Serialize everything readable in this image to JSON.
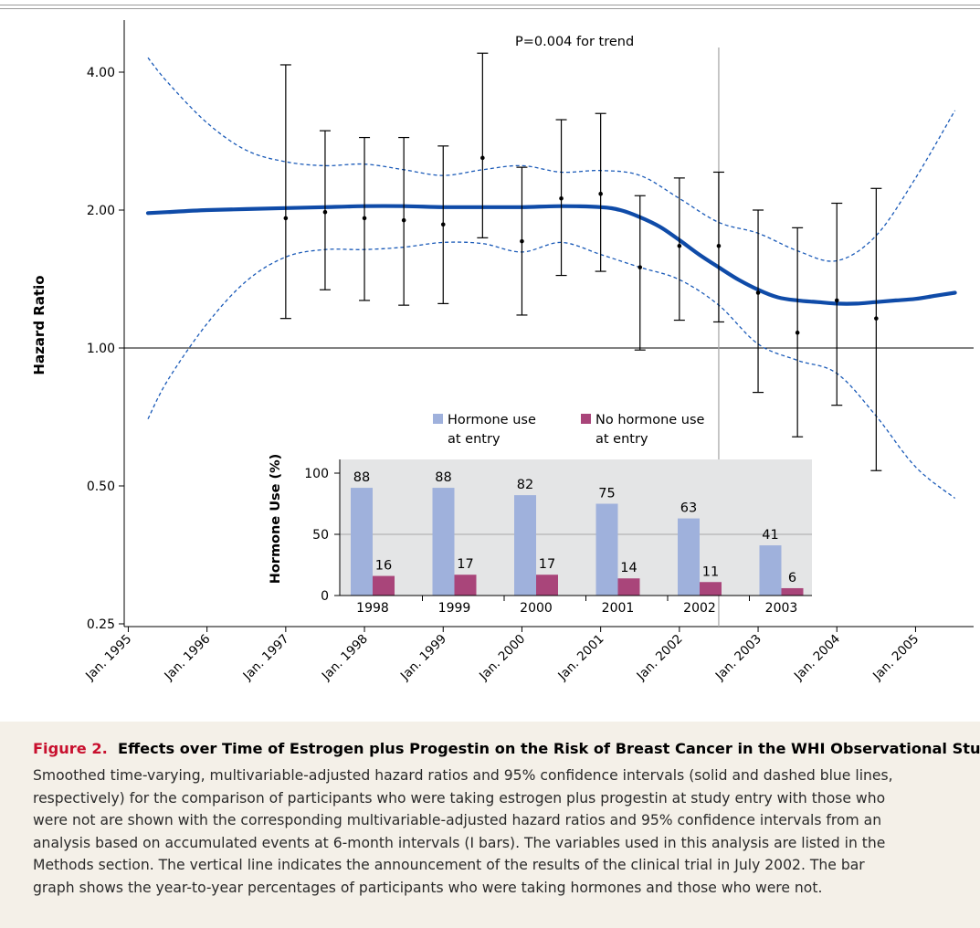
{
  "chart_data": [
    {
      "type": "line",
      "annotation": "P=0.004 for trend",
      "ylabel": "Hazard Ratio",
      "y_scale": "log",
      "y_ticks": [
        4.0,
        2.0,
        1.0,
        0.5,
        0.25
      ],
      "y_tick_labels": [
        "4.00",
        "2.00",
        "1.00",
        "0.50",
        "0.25"
      ],
      "reference_line_y": 1.0,
      "x_tick_labels": [
        "Jan. 1995",
        "Jan. 1996",
        "Jan. 1997",
        "Jan. 1998",
        "Jan. 1999",
        "Jan. 2000",
        "Jan. 2001",
        "Jan. 2002",
        "Jan. 2003",
        "Jan. 2004",
        "Jan. 2005"
      ],
      "x_range": [
        1995.0,
        2005.5
      ],
      "vertical_line_x": 2002.5,
      "colors": {
        "smoothed": "#0f4ba8",
        "ci": "#1a5ab8",
        "bars": "#000000"
      },
      "smoothed_hazard_ratio": {
        "x": [
          1995.25,
          1995.5,
          1996.0,
          1996.5,
          1997.0,
          1997.5,
          1998.0,
          1998.5,
          1999.0,
          1999.5,
          2000.0,
          2000.5,
          2001.0,
          2001.25,
          2001.5,
          2001.75,
          2002.0,
          2002.25,
          2002.5,
          2002.75,
          2003.0,
          2003.25,
          2003.5,
          2003.75,
          2004.0,
          2004.25,
          2004.5,
          2004.75,
          2005.0,
          2005.25,
          2005.5
        ],
        "y": [
          1.97,
          1.98,
          2.0,
          2.01,
          2.02,
          2.03,
          2.04,
          2.04,
          2.03,
          2.03,
          2.03,
          2.04,
          2.03,
          2.0,
          1.93,
          1.84,
          1.72,
          1.6,
          1.5,
          1.41,
          1.34,
          1.29,
          1.27,
          1.26,
          1.25,
          1.25,
          1.26,
          1.27,
          1.28,
          1.3,
          1.32
        ]
      },
      "ci_upper": {
        "x": [
          1995.25,
          1995.5,
          1996.0,
          1996.5,
          1997.0,
          1997.5,
          1998.0,
          1998.5,
          1999.0,
          1999.5,
          2000.0,
          2000.5,
          2001.0,
          2001.5,
          2002.0,
          2002.5,
          2003.0,
          2003.5,
          2004.0,
          2004.5,
          2005.0,
          2005.5
        ],
        "y": [
          4.3,
          3.8,
          3.1,
          2.7,
          2.55,
          2.5,
          2.52,
          2.45,
          2.38,
          2.45,
          2.5,
          2.42,
          2.44,
          2.38,
          2.12,
          1.88,
          1.78,
          1.63,
          1.55,
          1.76,
          2.35,
          3.3
        ]
      },
      "ci_lower": {
        "x": [
          1995.25,
          1995.5,
          1996.0,
          1996.5,
          1997.0,
          1997.5,
          1998.0,
          1998.5,
          1999.0,
          1999.5,
          2000.0,
          2000.5,
          2001.0,
          2001.5,
          2002.0,
          2002.5,
          2003.0,
          2003.5,
          2004.0,
          2004.5,
          2005.0,
          2005.5
        ],
        "y": [
          0.7,
          0.85,
          1.13,
          1.4,
          1.58,
          1.64,
          1.64,
          1.66,
          1.7,
          1.69,
          1.62,
          1.7,
          1.6,
          1.5,
          1.41,
          1.24,
          1.02,
          0.94,
          0.88,
          0.71,
          0.55,
          0.47
        ]
      },
      "interval_estimates": [
        {
          "x": 1997.0,
          "hr": 1.92,
          "lower": 1.16,
          "upper": 4.15
        },
        {
          "x": 1997.5,
          "hr": 1.98,
          "lower": 1.34,
          "upper": 2.98
        },
        {
          "x": 1998.0,
          "hr": 1.92,
          "lower": 1.27,
          "upper": 2.88
        },
        {
          "x": 1998.5,
          "hr": 1.9,
          "lower": 1.24,
          "upper": 2.88
        },
        {
          "x": 1999.0,
          "hr": 1.86,
          "lower": 1.25,
          "upper": 2.76
        },
        {
          "x": 1999.5,
          "hr": 2.6,
          "lower": 1.74,
          "upper": 4.4
        },
        {
          "x": 2000.0,
          "hr": 1.71,
          "lower": 1.18,
          "upper": 2.48
        },
        {
          "x": 2000.5,
          "hr": 2.12,
          "lower": 1.44,
          "upper": 3.15
        },
        {
          "x": 2001.0,
          "hr": 2.17,
          "lower": 1.47,
          "upper": 3.25
        },
        {
          "x": 2001.5,
          "hr": 1.5,
          "lower": 0.99,
          "upper": 2.15
        },
        {
          "x": 2002.0,
          "hr": 1.67,
          "lower": 1.15,
          "upper": 2.35
        },
        {
          "x": 2002.5,
          "hr": 1.67,
          "lower": 1.14,
          "upper": 2.42
        },
        {
          "x": 2003.0,
          "hr": 1.32,
          "lower": 0.8,
          "upper": 2.0
        },
        {
          "x": 2003.5,
          "hr": 1.08,
          "lower": 0.64,
          "upper": 1.83
        },
        {
          "x": 2004.0,
          "hr": 1.27,
          "lower": 0.75,
          "upper": 2.07
        },
        {
          "x": 2004.5,
          "hr": 1.16,
          "lower": 0.54,
          "upper": 2.23
        }
      ]
    },
    {
      "type": "bar",
      "ylabel": "Hormone Use (%)",
      "ylim": [
        0,
        100
      ],
      "y_ticks": [
        0,
        50,
        100
      ],
      "categories": [
        "1998",
        "1999",
        "2000",
        "2001",
        "2002",
        "2003"
      ],
      "background": "#e4e5e6",
      "series": [
        {
          "name": "Hormone use at entry",
          "name_lines": [
            "Hormone use",
            "at entry"
          ],
          "color": "#9fb1dc",
          "values": [
            88,
            88,
            82,
            75,
            63,
            41
          ],
          "labels": [
            "88",
            "88",
            "82",
            "75",
            "63",
            "41"
          ]
        },
        {
          "name": "No hormone use at entry",
          "name_lines": [
            "No hormone use",
            "at entry"
          ],
          "color": "#a9457a",
          "values": [
            16,
            17,
            17,
            14,
            11,
            6
          ],
          "labels": [
            "16",
            "17",
            "17",
            "14",
            "11",
            "6"
          ]
        }
      ]
    }
  ],
  "caption": {
    "label": "Figure 2.",
    "title": "Effects over Time of Estrogen plus Progestin on the Risk of Breast Cancer in the WHI Observational Study.",
    "lines": [
      "Smoothed time-varying, multivariable-adjusted hazard ratios and 95% confidence intervals (solid and dashed blue lines,",
      "respectively) for the comparison of participants who were taking estrogen plus progestin at study entry with those who",
      "were not are shown with the corresponding multivariable-adjusted hazard ratios and 95% confidence intervals from an",
      "analysis based on accumulated events at 6-month intervals (I bars). The variables used in this analysis are listed in the",
      "Methods section. The vertical line indicates the announcement of the results of the clinical trial in July 2002. The bar",
      "graph shows the year-to-year percentages of participants who were taking hormones and those who were not."
    ]
  }
}
